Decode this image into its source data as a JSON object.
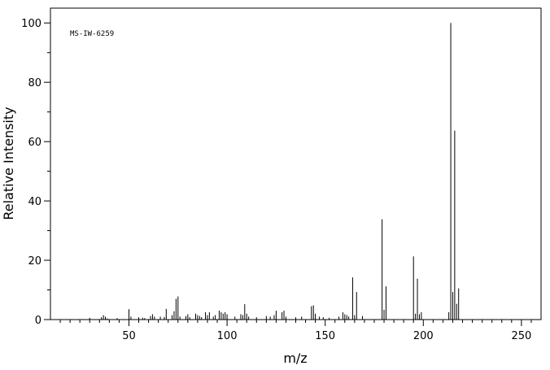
{
  "chart_data": {
    "type": "bar",
    "title": "",
    "annotation": "MS-IW-6259",
    "xlabel": "m/z",
    "ylabel": "Relative Intensity",
    "xlim": [
      10,
      260
    ],
    "ylim": [
      0,
      105
    ],
    "x_major_ticks": [
      50,
      100,
      150,
      200,
      250
    ],
    "y_major_ticks": [
      0,
      20,
      40,
      60,
      80,
      100
    ],
    "grid": false,
    "series": [
      {
        "x": [
          30,
          36,
          37,
          38,
          39,
          44,
          50,
          51,
          55,
          57,
          58,
          61,
          62,
          63,
          66,
          68,
          69,
          72,
          73,
          74,
          75,
          76,
          79,
          80,
          81,
          84,
          85,
          86,
          87,
          89,
          90,
          91,
          93,
          94,
          96,
          97,
          98,
          99,
          100,
          104,
          107,
          108,
          109,
          110,
          111,
          115,
          120,
          122,
          124,
          125,
          128,
          129,
          130,
          135,
          138,
          143,
          144,
          145,
          147,
          149,
          152,
          157,
          159,
          160,
          161,
          162,
          164,
          165,
          166,
          169,
          179,
          180,
          181,
          195,
          196,
          197,
          198,
          199,
          213,
          214,
          215,
          216,
          217,
          218
        ],
        "values": [
          0.6,
          0.8,
          1.5,
          1.0,
          0.4,
          0.5,
          3.5,
          1.0,
          0.8,
          0.6,
          0.5,
          1.2,
          1.8,
          1.0,
          1.0,
          0.9,
          3.6,
          1.5,
          2.8,
          7.0,
          7.8,
          1.0,
          1.2,
          1.8,
          0.8,
          2.0,
          1.5,
          1.2,
          0.8,
          2.5,
          1.5,
          2.5,
          1.0,
          1.5,
          3.0,
          2.5,
          2.0,
          2.5,
          1.8,
          1.0,
          1.8,
          1.5,
          5.2,
          2.0,
          1.0,
          0.8,
          1.2,
          1.0,
          1.5,
          3.0,
          2.5,
          3.0,
          1.0,
          0.8,
          1.0,
          4.5,
          4.8,
          2.0,
          1.0,
          0.8,
          0.6,
          1.0,
          2.5,
          1.8,
          1.5,
          1.0,
          14.2,
          1.5,
          9.3,
          1.2,
          33.8,
          3.3,
          11.2,
          21.3,
          2.0,
          13.8,
          1.8,
          2.5,
          2.5,
          100.0,
          9.3,
          63.7,
          5.3,
          10.5
        ]
      }
    ]
  }
}
